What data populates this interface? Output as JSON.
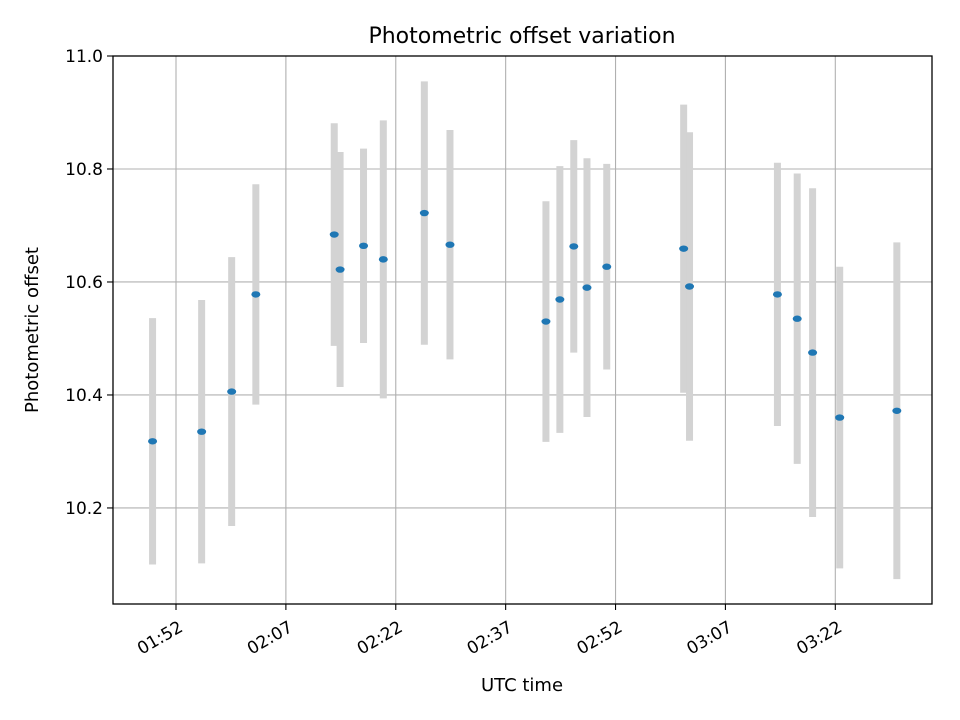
{
  "chart_data": {
    "type": "scatter",
    "title": "Photometric offset variation",
    "xlabel": "UTC time",
    "ylabel": "Photometric offset",
    "x_tick_labels": [
      "01:52",
      "02:07",
      "02:22",
      "02:37",
      "02:52",
      "03:07",
      "03:22"
    ],
    "y_tick_labels": [
      "10.2",
      "10.4",
      "10.6",
      "10.8",
      "11.0"
    ],
    "y_ticks": [
      10.2,
      10.4,
      10.6,
      10.8,
      11.0
    ],
    "ylim": [
      10.03,
      11.0
    ],
    "xlim": [
      "01:43.4",
      "03:35.2"
    ],
    "grid": true,
    "points": [
      {
        "x": "01:48.8",
        "y": 10.318,
        "yerr": 0.218
      },
      {
        "x": "01:55.5",
        "y": 10.335,
        "yerr": 0.233
      },
      {
        "x": "01:59.6",
        "y": 10.406,
        "yerr": 0.238
      },
      {
        "x": "02:02.9",
        "y": 10.578,
        "yerr": 0.195
      },
      {
        "x": "02:13.6",
        "y": 10.684,
        "yerr": 0.197
      },
      {
        "x": "02:14.4",
        "y": 10.622,
        "yerr": 0.208
      },
      {
        "x": "02:17.6",
        "y": 10.664,
        "yerr": 0.172
      },
      {
        "x": "02:20.3",
        "y": 10.64,
        "yerr": 0.246
      },
      {
        "x": "02:25.9",
        "y": 10.722,
        "yerr": 0.233
      },
      {
        "x": "02:29.4",
        "y": 10.666,
        "yerr": 0.203
      },
      {
        "x": "02:42.5",
        "y": 10.53,
        "yerr": 0.213
      },
      {
        "x": "02:44.4",
        "y": 10.569,
        "yerr": 0.236
      },
      {
        "x": "02:46.3",
        "y": 10.663,
        "yerr": 0.188
      },
      {
        "x": "02:48.1",
        "y": 10.59,
        "yerr": 0.229
      },
      {
        "x": "02:50.8",
        "y": 10.627,
        "yerr": 0.182
      },
      {
        "x": "03:01.3",
        "y": 10.659,
        "yerr": 0.255
      },
      {
        "x": "03:02.1",
        "y": 10.592,
        "yerr": 0.273
      },
      {
        "x": "03:14.1",
        "y": 10.578,
        "yerr": 0.233
      },
      {
        "x": "03:16.8",
        "y": 10.535,
        "yerr": 0.257
      },
      {
        "x": "03:18.9",
        "y": 10.475,
        "yerr": 0.291
      },
      {
        "x": "03:22.6",
        "y": 10.36,
        "yerr": 0.267
      },
      {
        "x": "03:30.4",
        "y": 10.372,
        "yerr": 0.298
      }
    ],
    "colors": {
      "marker": "#1f77b4",
      "errorbar": "#d3d3d3",
      "grid": "#b0b0b0",
      "axes": "#000000"
    }
  }
}
